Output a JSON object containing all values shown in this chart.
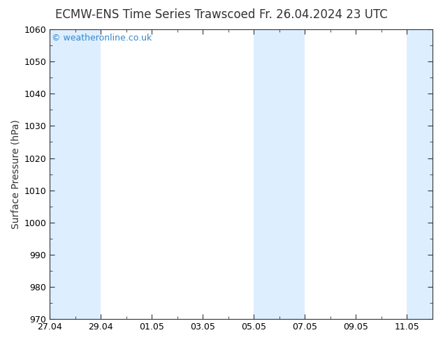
{
  "title_left": "ECMW-ENS Time Series Trawscoed",
  "title_right": "Fr. 26.04.2024 23 UTC",
  "ylabel": "Surface Pressure (hPa)",
  "ylim": [
    970,
    1060
  ],
  "yticks": [
    970,
    980,
    990,
    1000,
    1010,
    1020,
    1030,
    1040,
    1050,
    1060
  ],
  "xtick_labels": [
    "27.04",
    "29.04",
    "01.05",
    "03.05",
    "05.05",
    "07.05",
    "09.05",
    "11.05"
  ],
  "xtick_positions": [
    0,
    2,
    4,
    6,
    8,
    10,
    12,
    14
  ],
  "total_days": 15,
  "shaded_bands": [
    {
      "start": 0,
      "end": 1
    },
    {
      "start": 1,
      "end": 2
    },
    {
      "start": 8,
      "end": 9
    },
    {
      "start": 9,
      "end": 10
    },
    {
      "start": 14,
      "end": 15
    }
  ],
  "shaded_color": "#ddeeff",
  "watermark_text": "© weatheronline.co.uk",
  "watermark_color": "#3388cc",
  "background_color": "#ffffff",
  "plot_bg_color": "#ffffff",
  "title_fontsize": 12,
  "label_fontsize": 10,
  "tick_fontsize": 9,
  "watermark_fontsize": 9,
  "spine_color": "#333333",
  "tick_color": "#333333"
}
